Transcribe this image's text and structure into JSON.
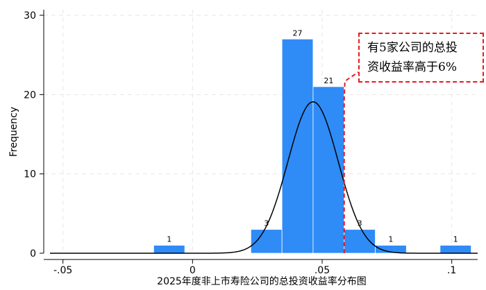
{
  "chart_data": {
    "type": "bar",
    "subtype": "histogram",
    "xlabel": "2025年度非上市寿险公司的总投资收益率分布图",
    "ylabel": "Frequency",
    "xlim": [
      -0.055,
      0.11
    ],
    "ylim": [
      0,
      30
    ],
    "xticks": [
      -0.05,
      0,
      0.05,
      0.1
    ],
    "xtick_labels": [
      "-.05",
      "0",
      ".05",
      ".1"
    ],
    "yticks": [
      0,
      10,
      20,
      30
    ],
    "ytick_labels": [
      "0",
      "10",
      "20",
      "30"
    ],
    "grid": true,
    "bin_width": 0.012,
    "bins": [
      {
        "x0": -0.015,
        "x1": -0.003,
        "count": 1,
        "label": "1"
      },
      {
        "x0": 0.0225,
        "x1": 0.0345,
        "count": 3,
        "label": "3"
      },
      {
        "x0": 0.0345,
        "x1": 0.0465,
        "count": 27,
        "label": "27"
      },
      {
        "x0": 0.0465,
        "x1": 0.0585,
        "count": 21,
        "label": "21"
      },
      {
        "x0": 0.0585,
        "x1": 0.0705,
        "count": 3,
        "label": "3"
      },
      {
        "x0": 0.0705,
        "x1": 0.0825,
        "count": 1,
        "label": "1"
      },
      {
        "x0": 0.0955,
        "x1": 0.1075,
        "count": 1,
        "label": "1"
      }
    ],
    "normal_curve": {
      "mean": 0.0465,
      "sd": 0.0097,
      "peak": 19.1
    },
    "colors": {
      "bar": "#2f8bf6",
      "bar_edge": "#ffffff",
      "curve": "#000000",
      "annotation": "#e8191f",
      "grid": "#e6e6e6"
    },
    "annotation": {
      "lines": [
        "有5家公司的总投",
        "资收益率高于6%"
      ],
      "marker_x": 0.0585
    }
  }
}
